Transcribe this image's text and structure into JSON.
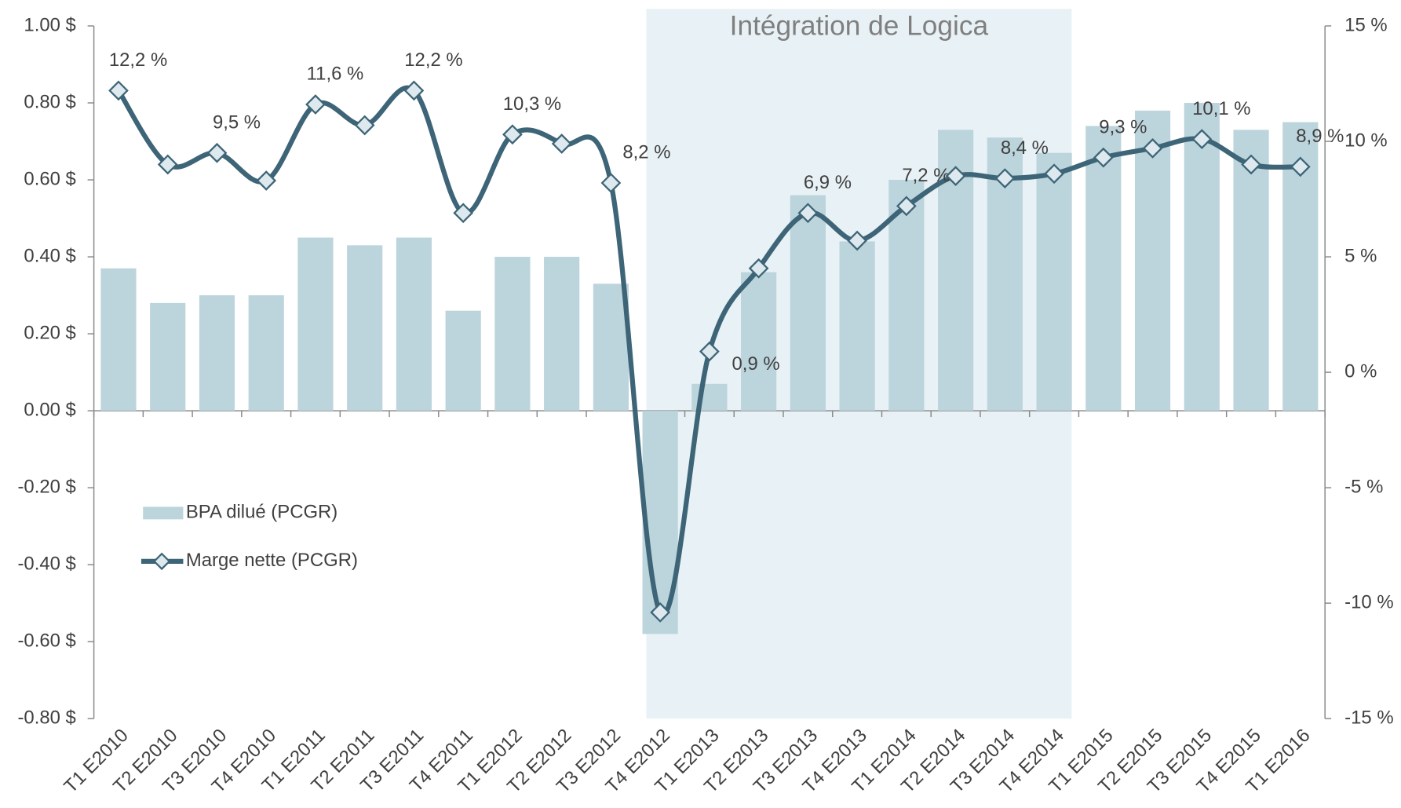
{
  "chart_data": {
    "type": "bar_line",
    "annotation": {
      "text": "Intégration de Logica",
      "span": [
        "T4 E2012",
        "T4 E2014"
      ],
      "color": "#e8f1f5"
    },
    "categories": [
      "T1 E2010",
      "T2 E2010",
      "T3 E2010",
      "T4 E2010",
      "T1 E2011",
      "T2 E2011",
      "T3 E2011",
      "T4 E2011",
      "T1 E2012",
      "T2 E2012",
      "T3 E2012",
      "T4 E2012",
      "T1 E2013",
      "T2 E2013",
      "T3 E2013",
      "T4 E2013",
      "T1 E2014",
      "T2 E2014",
      "T3 E2014",
      "T4 E2014",
      "T1 E2015",
      "T2 E2015",
      "T3 E2015",
      "T4 E2015",
      "T1 E2016"
    ],
    "series": [
      {
        "name": "BPA dilué (PCGR)",
        "type": "bar",
        "color": "#bcd4dc",
        "values": [
          0.37,
          0.28,
          0.3,
          0.3,
          0.45,
          0.43,
          0.45,
          0.26,
          0.4,
          0.4,
          0.33,
          -0.58,
          0.07,
          0.36,
          0.56,
          0.44,
          0.6,
          0.73,
          0.71,
          0.67,
          0.74,
          0.78,
          0.8,
          0.73,
          0.75
        ]
      },
      {
        "name": "Marge nette (PCGR)",
        "type": "line",
        "axis": "y2",
        "color": "#3d6577",
        "values": [
          12.2,
          9.0,
          9.5,
          8.3,
          11.6,
          10.7,
          12.2,
          6.9,
          10.3,
          9.9,
          8.2,
          -10.4,
          0.9,
          4.5,
          6.9,
          5.7,
          7.2,
          8.5,
          8.4,
          8.6,
          9.3,
          9.7,
          10.1,
          9.0,
          8.9
        ],
        "value_labels": [
          "12,2 %",
          null,
          "9,5 %",
          null,
          "11,6 %",
          null,
          "12,2 %",
          null,
          "10,3 %",
          null,
          "8,2 %",
          null,
          "0,9 %",
          null,
          "6,9 %",
          null,
          "7,2 %",
          null,
          "8,4 %",
          null,
          "9,3 %",
          null,
          "10,1 %",
          null,
          "8,9 %"
        ]
      }
    ],
    "ylim": [
      -0.8,
      1.0
    ],
    "yticks": [
      {
        "value": -0.8,
        "label": "-0.80 $"
      },
      {
        "value": -0.6,
        "label": "-0.60 $"
      },
      {
        "value": -0.4,
        "label": "-0.40 $"
      },
      {
        "value": -0.2,
        "label": "-0.20 $"
      },
      {
        "value": 0,
        "label": "0.00 $"
      },
      {
        "value": 0.2,
        "label": "0.20 $"
      },
      {
        "value": 0.4,
        "label": "0.40 $"
      },
      {
        "value": 0.6,
        "label": "0.60 $"
      },
      {
        "value": 0.8,
        "label": "0.80 $"
      },
      {
        "value": 1.0,
        "label": "1.00 $"
      }
    ],
    "y2lim": [
      -15,
      15
    ],
    "y2ticks": [
      {
        "value": -15,
        "label": "-15 %"
      },
      {
        "value": -10,
        "label": "-10 %"
      },
      {
        "value": -5,
        "label": "-5 %"
      },
      {
        "value": 0,
        "label": "0 %"
      },
      {
        "value": 5,
        "label": "5 %"
      },
      {
        "value": 10,
        "label": "10 %"
      },
      {
        "value": 15,
        "label": "15 %"
      }
    ],
    "legend": "left"
  }
}
